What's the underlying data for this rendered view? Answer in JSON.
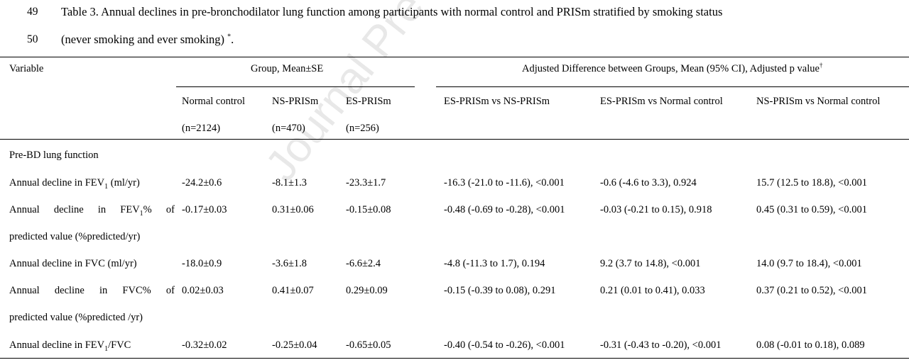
{
  "caption": {
    "line1_number": "49",
    "line1_text": "Table 3. Annual declines in pre-bronchodilator lung function among participants with normal control and PRISm stratified by smoking status",
    "line2_number": "50",
    "line2_text": "(never smoking and ever smoking)",
    "line2_mark": "*",
    "line2_end": "."
  },
  "watermark": "Journal Pre-proof",
  "headers": {
    "variable": "Variable",
    "group": "Group, Mean±SE",
    "adjusted": "Adjusted Difference between Groups, Mean (95% CI), Adjusted p value",
    "adjusted_mark": "†",
    "col1_name": "Normal control",
    "col1_n": "(n=2124)",
    "col2_name": "NS-PRISm",
    "col2_n": "(n=470)",
    "col3_name": "ES-PRISm",
    "col3_n": "(n=256)",
    "col4_name": "ES-PRISm vs NS-PRISm",
    "col5_name": "ES-PRISm vs Normal control",
    "col6_name": "NS-PRISm vs Normal control"
  },
  "section_title": "Pre-BD lung function",
  "rows": [
    {
      "label_pre": "Annual decline in FEV",
      "label_sub": "1",
      "label_post": " (ml/yr)",
      "label_line2": "",
      "values": [
        "-24.2±0.6",
        "-8.1±1.3",
        "-23.3±1.7",
        "-16.3 (-21.0 to -11.6), <0.001",
        "-0.6 (-4.6 to 3.3), 0.924",
        "15.7 (12.5 to 18.8), <0.001"
      ]
    },
    {
      "label_pre": "Annual decline in FEV",
      "label_sub": "1",
      "label_post": "% of",
      "label_line2": "predicted value (%predicted/yr)",
      "values": [
        "-0.17±0.03",
        "0.31±0.06",
        "-0.15±0.08",
        "-0.48 (-0.69 to -0.28), <0.001",
        "-0.03 (-0.21 to 0.15), 0.918",
        "0.45 (0.31 to 0.59), <0.001"
      ]
    },
    {
      "label_pre": "Annual decline in FVC (ml/yr)",
      "label_sub": "",
      "label_post": "",
      "label_line2": "",
      "values": [
        "-18.0±0.9",
        "-3.6±1.8",
        "-6.6±2.4",
        "-4.8 (-11.3 to 1.7), 0.194",
        "9.2 (3.7 to 14.8), <0.001",
        "14.0 (9.7 to 18.4), <0.001"
      ]
    },
    {
      "label_pre": "Annual decline in FVC% of",
      "label_sub": "",
      "label_post": "",
      "label_line2": "predicted value (%predicted /yr)",
      "values": [
        "0.02±0.03",
        "0.41±0.07",
        "0.29±0.09",
        "-0.15 (-0.39 to 0.08), 0.291",
        "0.21 (0.01 to 0.41), 0.033",
        "0.37 (0.21 to 0.52), <0.001"
      ]
    },
    {
      "label_pre": "Annual decline in FEV",
      "label_sub": "1",
      "label_post": "/FVC",
      "label_line2": "",
      "values": [
        "-0.32±0.02",
        "-0.25±0.04",
        "-0.65±0.05",
        "-0.40 (-0.54 to -0.26), <0.001",
        "-0.31 (-0.43 to -0.20), <0.001",
        "0.08 (-0.01 to 0.18), 0.089"
      ]
    }
  ]
}
